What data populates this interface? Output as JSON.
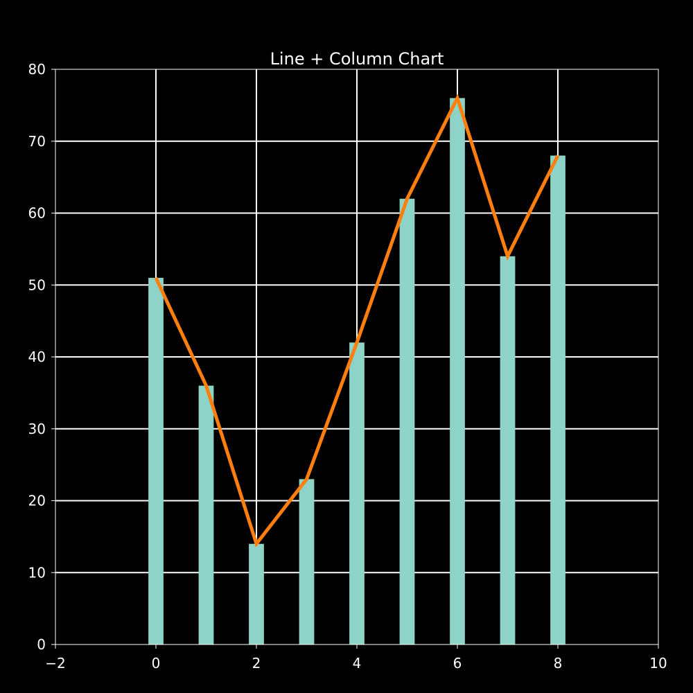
{
  "chart_data": {
    "type": "bar",
    "title": "Line + Column Chart",
    "xlabel": "",
    "ylabel": "",
    "x": [
      0,
      1,
      2,
      3,
      4,
      5,
      6,
      7,
      8
    ],
    "series": [
      {
        "type": "bar",
        "values": [
          51,
          36,
          14,
          23,
          42,
          62,
          76,
          54,
          68
        ],
        "color": "#8dd3c7"
      },
      {
        "type": "line",
        "values": [
          51,
          36,
          14,
          23,
          42,
          62,
          76,
          54,
          68
        ],
        "color": "#ff7f0e"
      }
    ],
    "xlim": [
      -2,
      10
    ],
    "ylim": [
      0,
      80
    ],
    "xticks": [
      "−2",
      "0",
      "2",
      "4",
      "6",
      "8",
      "10"
    ],
    "xtick_values": [
      -2,
      0,
      2,
      4,
      6,
      8,
      10
    ],
    "yticks": [
      "0",
      "10",
      "20",
      "30",
      "40",
      "50",
      "60",
      "70",
      "80"
    ],
    "ytick_values": [
      0,
      10,
      20,
      30,
      40,
      50,
      60,
      70,
      80
    ],
    "grid": true,
    "background": "#000000",
    "grid_color": "#ffffff",
    "text_color": "#ffffff"
  }
}
